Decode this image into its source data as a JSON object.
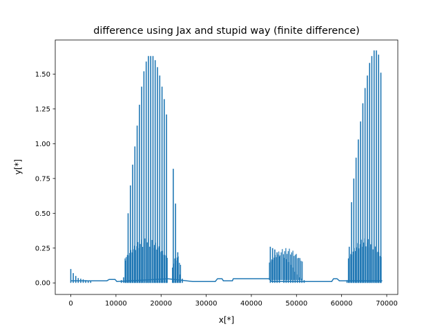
{
  "chart_data": {
    "type": "line",
    "title": "difference using Jax and stupid way (finite difference)",
    "xlabel": "x[*]",
    "ylabel": "y[*]",
    "xlim": [
      -3450,
      72450
    ],
    "ylim": [
      -0.083,
      1.745
    ],
    "xticks": [
      0,
      10000,
      20000,
      30000,
      40000,
      50000,
      60000,
      70000
    ],
    "xtick_labels": [
      "0",
      "10000",
      "20000",
      "30000",
      "40000",
      "50000",
      "60000",
      "70000"
    ],
    "yticks": [
      0.0,
      0.25,
      0.5,
      0.75,
      1.0,
      1.25,
      1.5
    ],
    "ytick_labels": [
      "0.00",
      "0.25",
      "0.50",
      "0.75",
      "1.00",
      "1.25",
      "1.50"
    ],
    "grid": false,
    "legend": "none",
    "series": [
      {
        "color": "#1f77b4",
        "baseline": [
          [
            0,
            0.015
          ],
          [
            8000,
            0.015
          ],
          [
            8500,
            0.025
          ],
          [
            9800,
            0.025
          ],
          [
            10200,
            0.01
          ],
          [
            21500,
            0.03
          ],
          [
            27000,
            0.01
          ],
          [
            32000,
            0.01
          ],
          [
            32500,
            0.03
          ],
          [
            33500,
            0.03
          ],
          [
            33800,
            0.015
          ],
          [
            35800,
            0.015
          ],
          [
            36000,
            0.03
          ],
          [
            44000,
            0.03
          ],
          [
            44500,
            0.01
          ],
          [
            57800,
            0.01
          ],
          [
            58200,
            0.03
          ],
          [
            59000,
            0.03
          ],
          [
            59500,
            0.015
          ],
          [
            69000,
            0.015
          ]
        ],
        "spikes": [
          [
            0,
            0.1
          ],
          [
            550,
            0.07
          ],
          [
            1100,
            0.05
          ],
          [
            1650,
            0.035
          ],
          [
            2200,
            0.03
          ],
          [
            2750,
            0.025
          ],
          [
            3300,
            0.02
          ],
          [
            3850,
            0.018
          ],
          [
            4400,
            0.016
          ],
          [
            11200,
            0.02
          ],
          [
            11700,
            0.04
          ],
          [
            12200,
            0.16
          ],
          [
            12700,
            0.5
          ],
          [
            13200,
            0.7
          ],
          [
            13700,
            0.85
          ],
          [
            14200,
            0.98
          ],
          [
            14700,
            1.13
          ],
          [
            15200,
            1.28
          ],
          [
            15700,
            1.41
          ],
          [
            16200,
            1.52
          ],
          [
            16700,
            1.59
          ],
          [
            17200,
            1.63
          ],
          [
            17700,
            1.63
          ],
          [
            18200,
            1.63
          ],
          [
            18700,
            1.6
          ],
          [
            19200,
            1.55
          ],
          [
            19700,
            1.49
          ],
          [
            20200,
            1.41
          ],
          [
            20700,
            1.32
          ],
          [
            21200,
            1.21
          ],
          [
            22700,
            0.82
          ],
          [
            23200,
            0.57
          ],
          [
            23700,
            0.22
          ],
          [
            24200,
            0.06
          ],
          [
            24700,
            0.03
          ],
          [
            44200,
            0.26
          ],
          [
            44700,
            0.25
          ],
          [
            45200,
            0.24
          ],
          [
            45700,
            0.22
          ],
          [
            46200,
            0.19
          ],
          [
            47200,
            0.18
          ],
          [
            47700,
            0.17
          ],
          [
            48200,
            0.15
          ],
          [
            48700,
            0.13
          ],
          [
            49200,
            0.11
          ],
          [
            49700,
            0.08
          ],
          [
            50200,
            0.06
          ],
          [
            50700,
            0.04
          ],
          [
            51200,
            0.03
          ],
          [
            51700,
            0.02
          ],
          [
            61200,
            0.02
          ],
          [
            61700,
            0.26
          ],
          [
            62200,
            0.58
          ],
          [
            62700,
            0.75
          ],
          [
            63200,
            0.9
          ],
          [
            63700,
            1.03
          ],
          [
            64200,
            1.16
          ],
          [
            64700,
            1.29
          ],
          [
            65200,
            1.4
          ],
          [
            65700,
            1.49
          ],
          [
            66200,
            1.58
          ],
          [
            66700,
            1.63
          ],
          [
            67200,
            1.67
          ],
          [
            67700,
            1.67
          ],
          [
            68200,
            1.64
          ],
          [
            68700,
            1.51
          ]
        ],
        "envelope_regions": [
          {
            "start": 12000,
            "end": 21500,
            "low": 0.0,
            "high": 0.32
          },
          {
            "start": 22500,
            "end": 24500,
            "low": 0.0,
            "high": 0.2
          },
          {
            "start": 44000,
            "end": 51500,
            "low": 0.02,
            "high": 0.25
          },
          {
            "start": 61500,
            "end": 69000,
            "low": 0.0,
            "high": 0.32
          }
        ]
      }
    ]
  }
}
